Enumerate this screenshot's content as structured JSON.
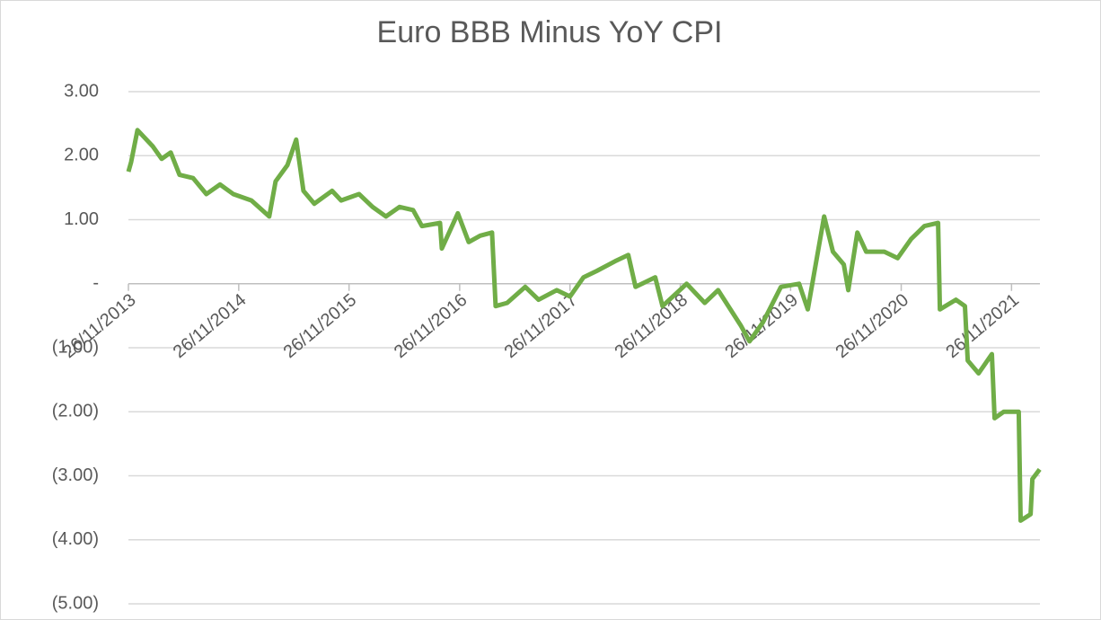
{
  "chart_data": {
    "type": "line",
    "title": "Euro BBB Minus YoY CPI",
    "x": [
      "26/11/2013",
      "05/12/2013",
      "26/12/2013",
      "14/02/2014",
      "16/03/2014",
      "15/04/2014",
      "14/05/2014",
      "28/06/2014",
      "11/08/2014",
      "25/09/2014",
      "08/11/2014",
      "07/01/2015",
      "07/03/2015",
      "28/03/2015",
      "06/05/2015",
      "04/06/2015",
      "28/06/2015",
      "03/08/2015",
      "01/10/2015",
      "31/10/2015",
      "29/12/2015",
      "12/02/2016",
      "27/03/2016",
      "11/05/2016",
      "25/06/2016",
      "24/07/2016",
      "22/09/2016",
      "28/09/2016",
      "20/11/2016",
      "26/12/2016",
      "02/02/2017",
      "13/03/2017",
      "25/03/2017",
      "02/05/2017",
      "01/07/2017",
      "14/08/2017",
      "13/10/2017",
      "26/11/2017",
      "10/01/2018",
      "23/02/2018",
      "24/04/2018",
      "07/06/2018",
      "01/07/2018",
      "04/09/2018",
      "28/09/2018",
      "17/12/2018",
      "15/02/2019",
      "31/03/2019",
      "14/06/2019",
      "13/07/2019",
      "27/08/2019",
      "25/10/2019",
      "24/12/2019",
      "22/01/2020",
      "16/03/2020",
      "14/04/2020",
      "20/05/2020",
      "04/06/2020",
      "04/07/2020",
      "02/08/2020",
      "01/10/2020",
      "14/11/2020",
      "29/12/2020",
      "11/02/2021",
      "28/03/2021",
      "03/04/2021",
      "26/05/2021",
      "25/06/2021",
      "04/07/2021",
      "09/08/2021",
      "22/09/2021",
      "01/10/2021",
      "31/10/2021",
      "20/12/2021",
      "26/12/2021",
      "28/01/2022",
      "03/02/2022",
      "27/02/2022"
    ],
    "series": [
      {
        "name": "Euro BBB Minus YoY CPI",
        "color": "#70ad47",
        "values": [
          1.75,
          1.9,
          2.4,
          2.15,
          1.95,
          2.05,
          1.7,
          1.65,
          1.4,
          1.55,
          1.4,
          1.3,
          1.05,
          1.6,
          1.85,
          2.25,
          1.45,
          1.25,
          1.45,
          1.3,
          1.4,
          1.2,
          1.05,
          1.2,
          1.15,
          0.9,
          0.95,
          0.55,
          1.1,
          0.65,
          0.75,
          0.8,
          -0.35,
          -0.3,
          -0.05,
          -0.25,
          -0.1,
          -0.2,
          0.1,
          0.2,
          0.35,
          0.45,
          -0.05,
          0.1,
          -0.35,
          0.0,
          -0.3,
          -0.1,
          -0.65,
          -0.9,
          -0.6,
          -0.05,
          0.0,
          -0.4,
          1.05,
          0.5,
          0.3,
          -0.1,
          0.8,
          0.5,
          0.5,
          0.4,
          0.7,
          0.9,
          0.95,
          -0.4,
          -0.25,
          -0.35,
          -1.2,
          -1.4,
          -1.1,
          -2.1,
          -2.0,
          -2.0,
          -3.7,
          -3.6,
          -3.05,
          -2.9
        ]
      }
    ],
    "xlim": [
      "26/11/2013",
      "28/02/2022"
    ],
    "xticks": [
      "26/11/2013",
      "26/11/2014",
      "26/11/2015",
      "26/11/2016",
      "26/11/2017",
      "26/11/2018",
      "26/11/2019",
      "26/11/2020",
      "26/11/2021"
    ],
    "ylim": [
      -5,
      3
    ],
    "yticks": [
      {
        "value": 3,
        "label": "3.00"
      },
      {
        "value": 2,
        "label": "2.00"
      },
      {
        "value": 1,
        "label": "1.00"
      },
      {
        "value": 0,
        "label": "-"
      },
      {
        "value": -1,
        "label": "(1.00)"
      },
      {
        "value": -2,
        "label": "(2.00)"
      },
      {
        "value": -3,
        "label": "(3.00)"
      },
      {
        "value": -4,
        "label": "(4.00)"
      },
      {
        "value": -5,
        "label": "(5.00)"
      }
    ],
    "grid": true
  }
}
